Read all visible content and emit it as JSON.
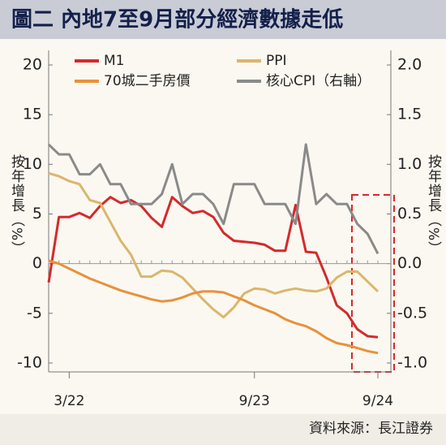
{
  "chart_data": {
    "type": "line",
    "title": "圖二 內地7至9月部分經濟數據走低",
    "y_label": "按年增長（%）",
    "y2_label": "按年增長（%）",
    "source": "資料來源：長江證券",
    "categories": [
      null,
      null,
      "3/22",
      null,
      null,
      null,
      null,
      null,
      null,
      null,
      null,
      null,
      null,
      null,
      null,
      null,
      null,
      null,
      null,
      null,
      "9/23",
      null,
      null,
      null,
      null,
      null,
      null,
      null,
      null,
      null,
      null,
      null,
      "9/24"
    ],
    "ylim": [
      -10,
      20
    ],
    "yticks": [
      -10,
      -5,
      0,
      5,
      10,
      15,
      20
    ],
    "y2lim": [
      -1,
      2
    ],
    "y2ticks": [
      {
        "value": -1,
        "label": "-1.0"
      },
      -0.5,
      {
        "value": 0,
        "label": "0.0"
      },
      0.5,
      {
        "value": 1,
        "label": "1.0"
      },
      1.5,
      {
        "value": 2,
        "label": "2.0"
      }
    ],
    "series": [
      {
        "name": "M1",
        "color": "#d42a2c",
        "values": [
          -1.9,
          4.7,
          4.7,
          5.1,
          4.6,
          5.8,
          6.7,
          6.1,
          6.4,
          5.8,
          4.6,
          3.7,
          6.7,
          5.8,
          5.1,
          5.3,
          4.7,
          3.1,
          2.3,
          2.2,
          2.1,
          1.9,
          1.3,
          1.3,
          5.9,
          1.2,
          1.1,
          -1.4,
          -4.2,
          -5.0,
          -6.6,
          -7.3,
          -7.4
        ]
      },
      {
        "name": "PPI",
        "color": "#dbb66c",
        "values": [
          9.1,
          8.8,
          8.3,
          8.0,
          6.4,
          6.1,
          4.2,
          2.3,
          0.9,
          -1.3,
          -1.3,
          -0.7,
          -0.8,
          -1.4,
          -2.5,
          -3.6,
          -4.6,
          -5.4,
          -4.4,
          -3.0,
          -2.5,
          -2.6,
          -3.0,
          -2.7,
          -2.5,
          -2.7,
          -2.8,
          -2.5,
          -1.4,
          -0.8,
          -0.8,
          -1.8,
          -2.8
        ]
      },
      {
        "name": "70城二手房價",
        "color": "#e8913b",
        "values": [
          0.3,
          0.0,
          -0.5,
          -1.0,
          -1.5,
          -1.9,
          -2.3,
          -2.7,
          -3.0,
          -3.3,
          -3.6,
          -3.8,
          -3.7,
          -3.4,
          -3.0,
          -2.8,
          -2.8,
          -2.9,
          -3.3,
          -3.7,
          -4.2,
          -4.6,
          -5.0,
          -5.6,
          -6.0,
          -6.3,
          -6.8,
          -7.5,
          -8.0,
          -8.2,
          -8.5,
          -8.8,
          -9.0
        ]
      },
      {
        "name": "核心CPI（右軸）",
        "color": "#8a8a8a",
        "axis": "y2",
        "values": [
          1.2,
          1.1,
          1.1,
          0.9,
          0.9,
          1.0,
          0.8,
          0.8,
          0.6,
          0.6,
          0.6,
          0.7,
          1.0,
          0.6,
          0.7,
          0.7,
          0.6,
          0.4,
          0.8,
          0.8,
          0.8,
          0.6,
          0.6,
          0.6,
          0.4,
          1.2,
          0.6,
          0.7,
          0.6,
          0.6,
          0.4,
          0.3,
          0.1
        ]
      }
    ]
  }
}
